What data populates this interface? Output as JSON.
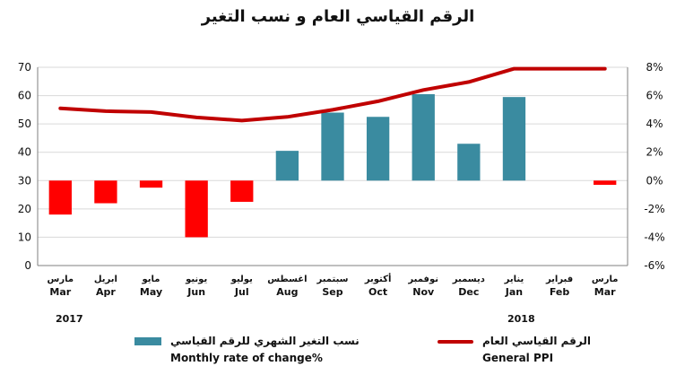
{
  "chart_data": {
    "type": "bar+line",
    "title": "الرقم القياسي العام و نسب التغير",
    "categories_ar": [
      "مارس",
      "ابريل",
      "مايو",
      "يونيو",
      "يوليو",
      "اغسطس",
      "سبتمبر",
      "أكتوبر",
      "نوفمبر",
      "ديسمبر",
      "يناير",
      "فبراير",
      "مارس"
    ],
    "categories_en": [
      "Mar",
      "Apr",
      "May",
      "Jun",
      "Jul",
      "Aug",
      "Sep",
      "Oct",
      "Nov",
      "Dec",
      "Jan",
      "Feb",
      "Mar"
    ],
    "year_labels": {
      "start": "2017",
      "end": "2018"
    },
    "left_axis": {
      "min": 0,
      "max": 70,
      "ticks": [
        "0",
        "10",
        "20",
        "30",
        "40",
        "50",
        "60",
        "70"
      ]
    },
    "right_axis": {
      "min": -6,
      "max": 8,
      "ticks": [
        "-6%",
        "-4%",
        "-2%",
        "0%",
        "2%",
        "4%",
        "6%",
        "8%"
      ]
    },
    "series": [
      {
        "name_ar": "نسب التغير الشهري للرقم القياسي",
        "name_en": "Monthly rate of change%",
        "axis": "right",
        "type": "bar",
        "values": [
          -2.4,
          -1.6,
          -0.5,
          -4.0,
          -1.5,
          2.1,
          4.8,
          4.5,
          6.1,
          2.6,
          5.9,
          null,
          -0.3
        ]
      },
      {
        "name_ar": "الرقم القياسي العام",
        "name_en": "General  PPI",
        "axis": "left",
        "type": "line",
        "values": [
          55.5,
          54.5,
          54.2,
          52.3,
          51.2,
          52.5,
          55,
          58,
          62,
          64.8,
          69.5,
          69.5,
          69.5
        ]
      }
    ],
    "colors": {
      "positive_bar": "#3a8ba0",
      "negative_bar": "#ff0000",
      "line": "#c00000",
      "grid": "#d9d9d9",
      "axis": "#7f7f7f"
    }
  }
}
